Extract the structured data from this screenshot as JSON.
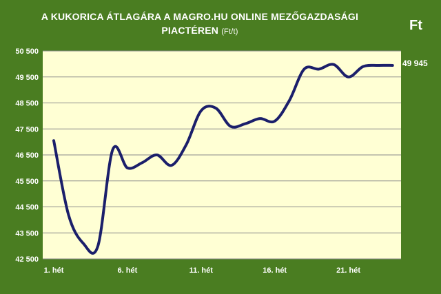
{
  "title_main": "A KUKORICA ÁTLAGÁRA A MAGRO.HU ONLINE MEZŐGAZDASÁGI",
  "title_line2": "PIACTÉREN",
  "title_unit": "(Ft/t)",
  "currency_label": "Ft",
  "last_value_label": "49 945",
  "chart_data": {
    "type": "line",
    "title": "A KUKORICA ÁTLAGÁRA A MAGRO.HU ONLINE MEZŐGAZDASÁGI PIACTÉREN (Ft/t)",
    "xlabel": "",
    "ylabel": "",
    "x": [
      1,
      2,
      3,
      4,
      5,
      6,
      7,
      8,
      9,
      10,
      11,
      12,
      13,
      14,
      15,
      16,
      17,
      18,
      19,
      20,
      21,
      22,
      23,
      24
    ],
    "x_tick_values": [
      1,
      6,
      11,
      16,
      21
    ],
    "x_tick_labels": [
      "1. hét",
      "6. hét",
      "11. hét",
      "16. hét",
      "21. hét"
    ],
    "series": [
      {
        "values": [
          47050,
          44200,
          43100,
          43000,
          46700,
          46000,
          46200,
          46500,
          46100,
          46900,
          48200,
          48300,
          47600,
          47700,
          47900,
          47800,
          48600,
          49800,
          49800,
          49980,
          49500,
          49900,
          49945,
          49945
        ]
      }
    ],
    "ylim": [
      42500,
      50500
    ],
    "y_ticks": [
      42500,
      43500,
      44500,
      45500,
      46500,
      47500,
      48500,
      49500,
      50500
    ],
    "y_tick_labels": [
      "42 500",
      "43 500",
      "44 500",
      "45 500",
      "46 500",
      "47 500",
      "48 500",
      "49 500",
      "50 500"
    ],
    "grid": true,
    "colors": {
      "line": "#1b1f6b",
      "plot_bg": "#ffffd4",
      "page_bg": "#4a7d21",
      "grid": "#8a8a8a"
    }
  }
}
